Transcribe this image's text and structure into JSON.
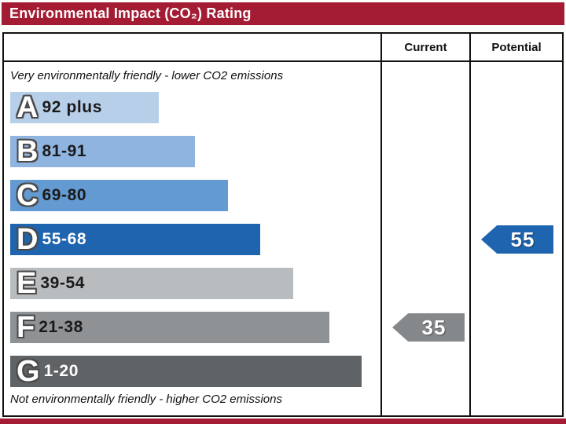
{
  "title": "Environmental Impact (CO₂) Rating",
  "accent_color": "#a31c33",
  "header": {
    "current": "Current",
    "potential": "Potential"
  },
  "notes": {
    "top": "Very environmentally friendly - lower CO2 emissions",
    "bottom": "Not environmentally friendly - higher CO2 emissions"
  },
  "bands": [
    {
      "letter": "A",
      "range": "92 plus",
      "color": "#b8cfe9",
      "width_pct": 41,
      "text_color": "#1a1a1a"
    },
    {
      "letter": "B",
      "range": "81-91",
      "color": "#90b4e0",
      "width_pct": 51,
      "text_color": "#1a1a1a"
    },
    {
      "letter": "C",
      "range": "69-80",
      "color": "#649ad2",
      "width_pct": 60,
      "text_color": "#1a1a1a"
    },
    {
      "letter": "D",
      "range": "55-68",
      "color": "#1e64ae",
      "width_pct": 69,
      "text_color": "#ffffff"
    },
    {
      "letter": "E",
      "range": "39-54",
      "color": "#b9bcbe",
      "width_pct": 78,
      "text_color": "#1a1a1a"
    },
    {
      "letter": "F",
      "range": "21-38",
      "color": "#8e9295",
      "width_pct": 88,
      "text_color": "#1a1a1a"
    },
    {
      "letter": "G",
      "range": "1-20",
      "color": "#606366",
      "width_pct": 97,
      "text_color": "#ffffff"
    }
  ],
  "markers": {
    "current": {
      "value": "35",
      "band": "F",
      "color": "#84888b"
    },
    "potential": {
      "value": "55",
      "band": "D",
      "color": "#1e64ae"
    }
  },
  "chart_data": {
    "type": "bar",
    "title": "Environmental Impact (CO₂) Rating",
    "categories": [
      "A",
      "B",
      "C",
      "D",
      "E",
      "F",
      "G"
    ],
    "band_ranges": [
      "92 plus",
      "81-91",
      "69-80",
      "55-68",
      "39-54",
      "21-38",
      "1-20"
    ],
    "series": [
      {
        "name": "Current",
        "value": 35,
        "band": "F"
      },
      {
        "name": "Potential",
        "value": 55,
        "band": "D"
      }
    ],
    "top_label": "Very environmentally friendly - lower CO2 emissions",
    "bottom_label": "Not environmentally friendly - higher CO2 emissions",
    "legend_position": "none",
    "grid": false
  }
}
